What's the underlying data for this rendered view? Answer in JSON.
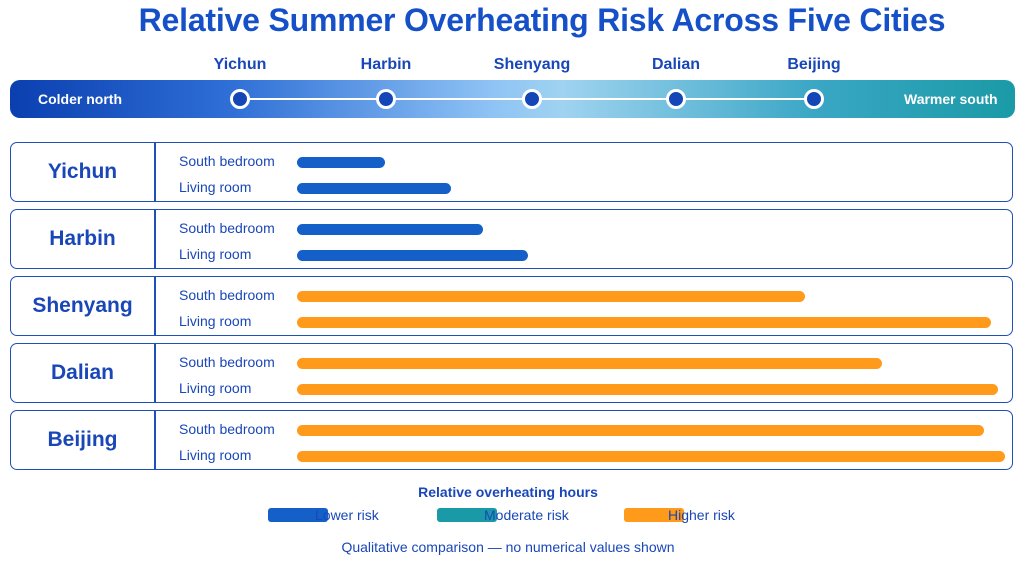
{
  "title": "Relative Summer Overheating Risk Across Five Cities",
  "scale": {
    "left_label": "Colder north",
    "right_label": "Warmer south",
    "cities": [
      "Yichun",
      "Harbin",
      "Shenyang",
      "Dalian",
      "Beijing"
    ]
  },
  "legend": {
    "title": "Relative overheating hours",
    "items": [
      {
        "label": "Lower risk",
        "color": "#1460c8"
      },
      {
        "label": "Moderate risk",
        "color": "#1a9aa6"
      },
      {
        "label": "Higher risk",
        "color": "#ff9a1a"
      }
    ]
  },
  "footnote": "Qualitative comparison — no numerical values shown",
  "chart_data": {
    "type": "bar",
    "orientation": "horizontal",
    "title": "Relative Summer Overheating Risk Across Five Cities",
    "xlim": [
      0,
      100
    ],
    "grid": false,
    "legend_position": "bottom",
    "groups": [
      {
        "city": "Yichun",
        "bars": [
          {
            "room": "South bedroom",
            "value": 12.5,
            "risk": "Lower risk"
          },
          {
            "room": "Living room",
            "value": 22,
            "risk": "Lower risk"
          }
        ]
      },
      {
        "city": "Harbin",
        "bars": [
          {
            "room": "South bedroom",
            "value": 26.5,
            "risk": "Lower risk"
          },
          {
            "room": "Living room",
            "value": 33,
            "risk": "Lower risk"
          }
        ]
      },
      {
        "city": "Shenyang",
        "bars": [
          {
            "room": "South bedroom",
            "value": 72.5,
            "risk": "Higher risk"
          },
          {
            "room": "Living room",
            "value": 99,
            "risk": "Higher risk"
          }
        ]
      },
      {
        "city": "Dalian",
        "bars": [
          {
            "room": "South bedroom",
            "value": 83.5,
            "risk": "Higher risk"
          },
          {
            "room": "Living room",
            "value": 100,
            "risk": "Higher risk"
          }
        ]
      },
      {
        "city": "Beijing",
        "bars": [
          {
            "room": "South bedroom",
            "value": 98,
            "risk": "Higher risk"
          },
          {
            "room": "Living room",
            "value": 101,
            "risk": "Higher risk"
          }
        ]
      }
    ]
  }
}
